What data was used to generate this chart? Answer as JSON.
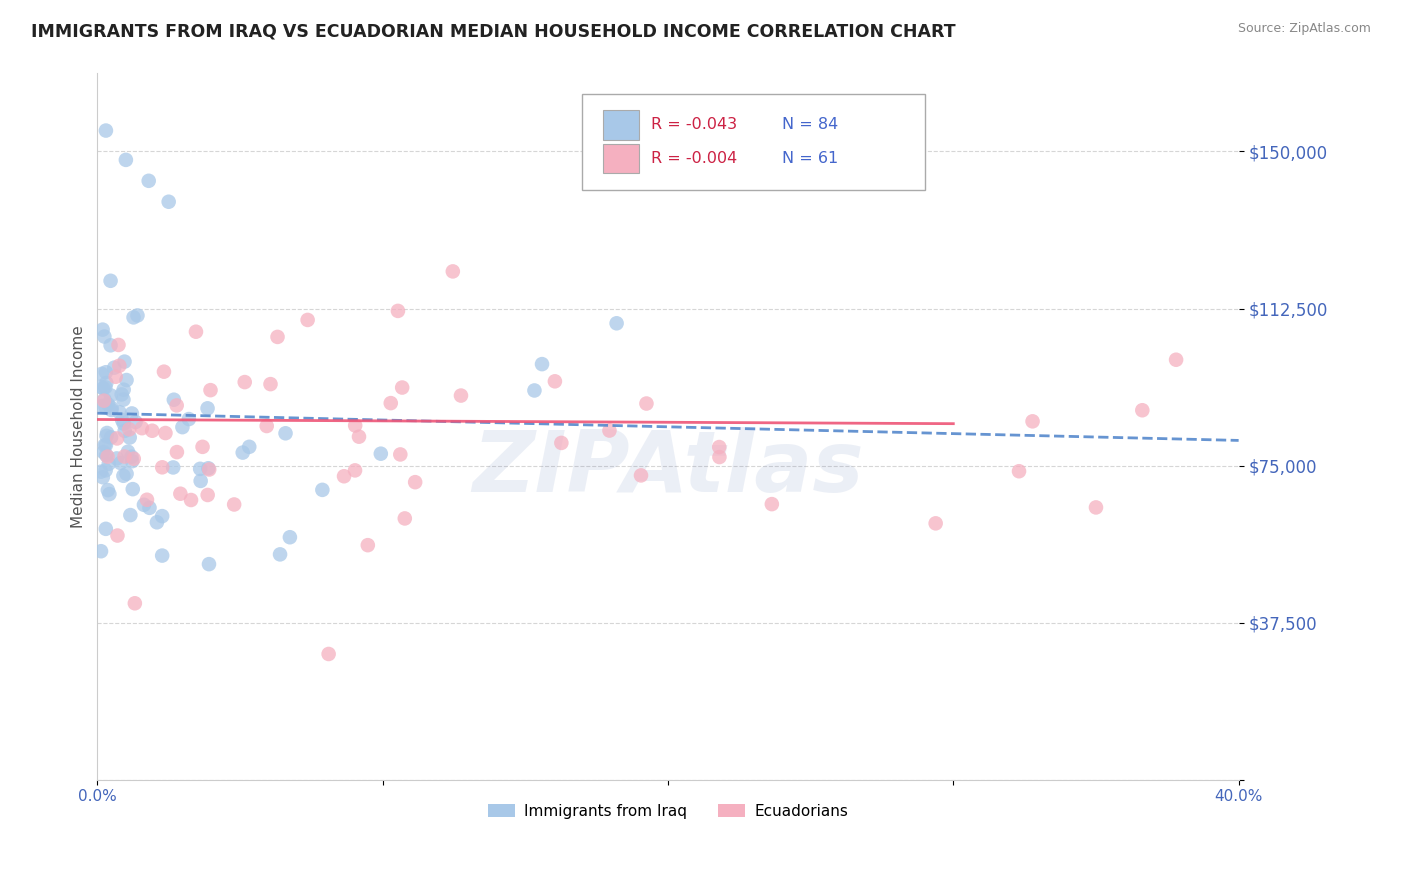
{
  "title": "IMMIGRANTS FROM IRAQ VS ECUADORIAN MEDIAN HOUSEHOLD INCOME CORRELATION CHART",
  "source": "Source: ZipAtlas.com",
  "ylabel": "Median Household Income",
  "xlim": [
    0.0,
    0.4
  ],
  "ylim": [
    0,
    168750
  ],
  "yticks": [
    0,
    37500,
    75000,
    112500,
    150000
  ],
  "ytick_labels": [
    "",
    "$37,500",
    "$75,000",
    "$112,500",
    "$150,000"
  ],
  "xticks": [
    0.0,
    0.1,
    0.2,
    0.3,
    0.4
  ],
  "xtick_labels": [
    "0.0%",
    "",
    "",
    "",
    "40.0%"
  ],
  "legend1_label": "Immigrants from Iraq",
  "legend2_label": "Ecuadorians",
  "r1": "-0.043",
  "n1": "84",
  "r2": "-0.004",
  "n2": "61",
  "color_iraq": "#a8c8e8",
  "color_ecuador": "#f5b0c0",
  "color_iraq_line": "#5588cc",
  "color_ecuador_line": "#ee5577",
  "background_color": "#ffffff",
  "grid_color": "#cccccc",
  "title_color": "#222222",
  "tick_color": "#4466bb"
}
